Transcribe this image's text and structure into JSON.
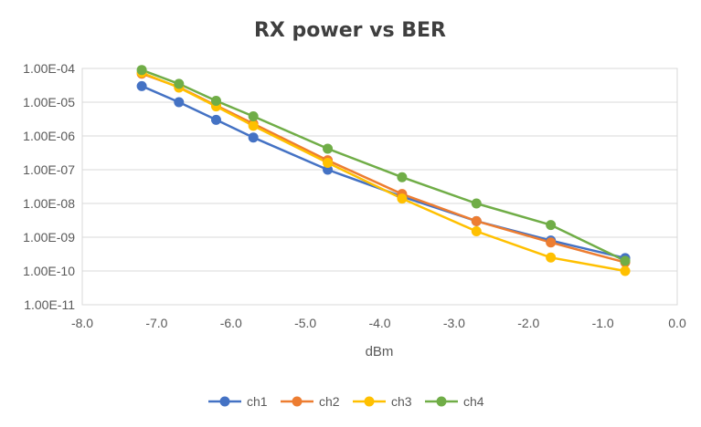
{
  "chart_data": {
    "type": "line",
    "title": "RX power vs BER",
    "xlabel": "dBm",
    "ylabel": "",
    "xlim": [
      -8.0,
      0.0
    ],
    "x_ticks": [
      "-8.0",
      "-7.0",
      "-6.0",
      "-5.0",
      "-4.0",
      "-3.0",
      "-2.0",
      "-1.0",
      "0.0"
    ],
    "y_scale": "log",
    "ylim": [
      1e-11,
      0.0001
    ],
    "y_ticks": [
      "1.00E-11",
      "1.00E-10",
      "1.00E-09",
      "1.00E-08",
      "1.00E-07",
      "1.00E-06",
      "1.00E-05",
      "1.00E-04"
    ],
    "grid": "horizontal",
    "legend_position": "bottom",
    "x": [
      -7.2,
      -6.7,
      -6.2,
      -5.7,
      -4.7,
      -3.7,
      -2.7,
      -1.7,
      -0.7
    ],
    "series": [
      {
        "name": "ch1",
        "color": "#4472c4",
        "values": [
          3e-05,
          1e-05,
          3e-06,
          9e-07,
          1e-07,
          1.6e-08,
          3e-09,
          8e-10,
          2.4e-10
        ]
      },
      {
        "name": "ch2",
        "color": "#ed7d31",
        "values": [
          7e-05,
          2.8e-05,
          8e-06,
          2.3e-06,
          1.9e-07,
          1.9e-08,
          3e-09,
          7e-10,
          1.8e-10
        ]
      },
      {
        "name": "ch3",
        "color": "#ffc000",
        "values": [
          7.5e-05,
          2.7e-05,
          7.5e-06,
          2e-06,
          1.6e-07,
          1.4e-08,
          1.5e-09,
          2.5e-10,
          1e-10
        ]
      },
      {
        "name": "ch4",
        "color": "#70ad47",
        "values": [
          9e-05,
          3.5e-05,
          1.1e-05,
          3.8e-06,
          4.2e-07,
          6e-08,
          1e-08,
          2.3e-09,
          2e-10
        ]
      }
    ]
  }
}
